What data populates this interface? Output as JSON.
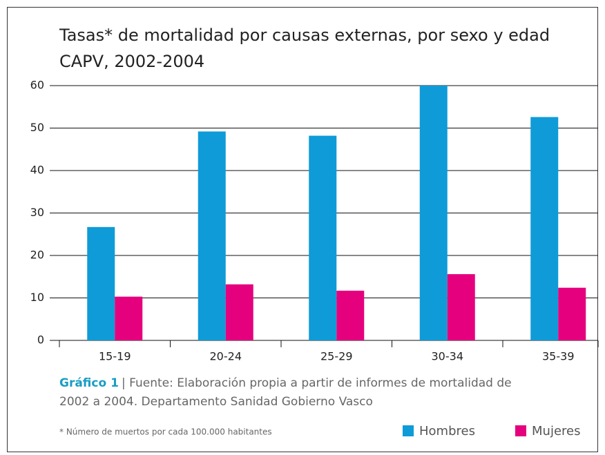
{
  "chart_data": {
    "type": "bar",
    "title": [
      "Tasas* de mortalidad por causas externas, por sexo y edad",
      "CAPV, 2002-2004"
    ],
    "categories": [
      "15-19",
      "20-24",
      "25-29",
      "30-34",
      "35-39"
    ],
    "series": [
      {
        "name": "Hombres",
        "color": "#0f9bd7",
        "values": [
          26.7,
          49.2,
          48.2,
          60,
          52.6
        ]
      },
      {
        "name": "Mujeres",
        "color": "#e5007e",
        "values": [
          10.3,
          13.2,
          11.7,
          15.6,
          12.4
        ]
      }
    ],
    "ylim": [
      0,
      60
    ],
    "yticks": [
      0,
      10,
      20,
      30,
      40,
      50,
      60
    ],
    "grid": true,
    "caption_label": "Gráfico 1",
    "caption": [
      "| Fuente: Elaboración propia a partir de informes de mortalidad de",
      "2002 a 2004. Departamento Sanidad Gobierno Vasco"
    ],
    "footnote": "* Número de muertos por cada 100.000 habitantes"
  }
}
